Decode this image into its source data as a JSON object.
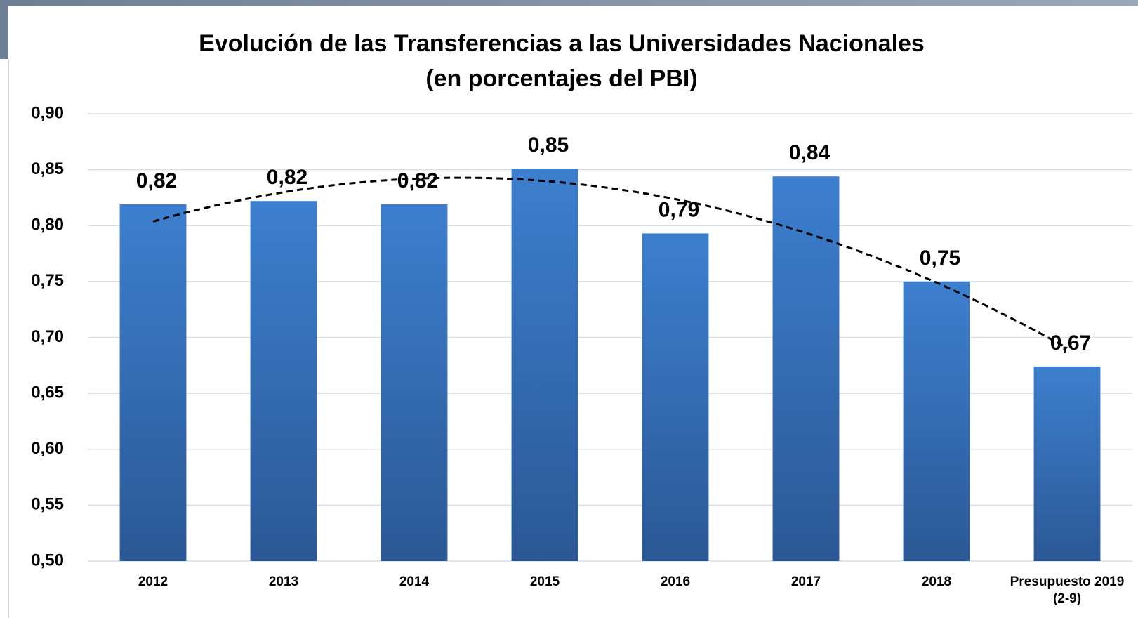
{
  "chart_data": {
    "type": "bar",
    "title": "Evolución de las Transferencias a las Universidades Nacionales",
    "subtitle": "(en porcentajes del PBI)",
    "categories": [
      "2012",
      "2013",
      "2014",
      "2015",
      "2016",
      "2017",
      "2018",
      "Presupuesto 2019 (2-9)"
    ],
    "values": [
      0.819,
      0.822,
      0.819,
      0.851,
      0.793,
      0.844,
      0.75,
      0.674
    ],
    "value_labels": [
      "0,82",
      "0,82",
      "0,82",
      "0,85",
      "0,79",
      "0,84",
      "0,75",
      "0,67"
    ],
    "color": "#3a7dcc",
    "ylim": [
      0.5,
      0.9
    ],
    "yticks": [
      {
        "value": 0.5,
        "label": "0,50"
      },
      {
        "value": 0.55,
        "label": "0,55"
      },
      {
        "value": 0.6,
        "label": "0,60"
      },
      {
        "value": 0.65,
        "label": "0,65"
      },
      {
        "value": 0.7,
        "label": "0,70"
      },
      {
        "value": 0.75,
        "label": "0,75"
      },
      {
        "value": 0.8,
        "label": "0,80"
      },
      {
        "value": 0.85,
        "label": "0,85"
      },
      {
        "value": 0.9,
        "label": "0,90"
      }
    ],
    "grid": true,
    "trendline": "polynomial"
  }
}
